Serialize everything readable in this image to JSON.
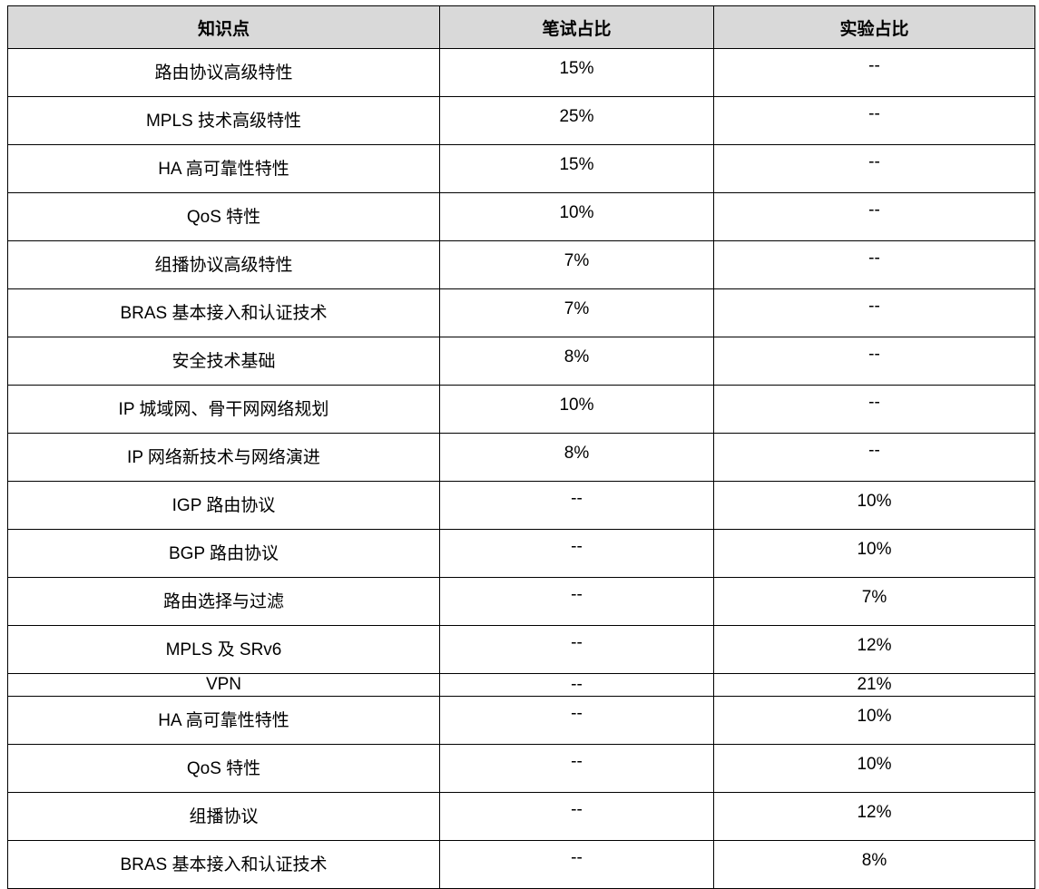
{
  "table": {
    "headers": [
      "知识点",
      "笔试占比",
      "实验占比"
    ],
    "rows": [
      [
        "路由协议高级特性",
        "15%",
        "--"
      ],
      [
        "MPLS 技术高级特性",
        "25%",
        "--"
      ],
      [
        "HA 高可靠性特性",
        "15%",
        "--"
      ],
      [
        "QoS 特性",
        "10%",
        "--"
      ],
      [
        "组播协议高级特性",
        "7%",
        "--"
      ],
      [
        "BRAS 基本接入和认证技术",
        "7%",
        "--"
      ],
      [
        "安全技术基础",
        "8%",
        "--"
      ],
      [
        "IP 城域网、骨干网网络规划",
        "10%",
        "--"
      ],
      [
        "IP 网络新技术与网络演进",
        "8%",
        "--"
      ],
      [
        "IGP 路由协议",
        "--",
        "10%"
      ],
      [
        "BGP 路由协议",
        "--",
        "10%"
      ],
      [
        "路由选择与过滤",
        "--",
        "7%"
      ],
      [
        "MPLS 及 SRv6",
        "--",
        "12%"
      ],
      [
        "VPN",
        "--",
        "21%"
      ],
      [
        "HA 高可靠性特性",
        "--",
        "10%"
      ],
      [
        "QoS 特性",
        "--",
        "10%"
      ],
      [
        "组播协议",
        "--",
        "12%"
      ],
      [
        "BRAS 基本接入和认证技术",
        "--",
        "8%"
      ]
    ]
  }
}
